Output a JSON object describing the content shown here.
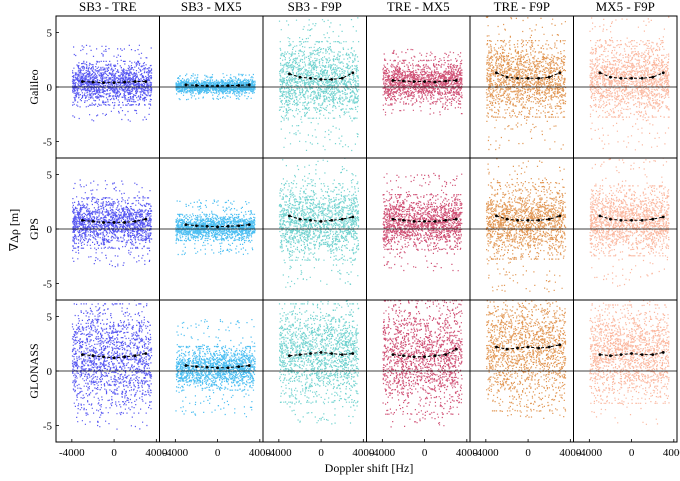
{
  "chart_data": {
    "type": "scatter",
    "xlabel": "Doppler shift [Hz]",
    "ylabel": "∇Δρ [m]",
    "columns": [
      "SB3 - TRE",
      "SB3 - MX5",
      "SB3 - F9P",
      "TRE - MX5",
      "TRE - F9P",
      "MX5 - F9P"
    ],
    "rows": [
      "Galileo",
      "GPS",
      "GLONASS"
    ],
    "column_colors": [
      "#2222ee",
      "#11aaee",
      "#44c4c0",
      "#c01848",
      "#d8751e",
      "#f9a080"
    ],
    "xlim": [
      -5500,
      4300
    ],
    "ylim": [
      -6.5,
      6.5
    ],
    "yticks": [
      5,
      0,
      -5
    ],
    "xticks": [
      -4000,
      0,
      4000
    ],
    "median_x": [
      -3000,
      -2000,
      -1000,
      0,
      1000,
      2000,
      3000
    ],
    "panels": [
      {
        "row": 0,
        "col": 0,
        "xrange": [
          -4000,
          3500
        ],
        "spread": 2.0,
        "outlier": 3.5,
        "median": [
          0.5,
          0.45,
          0.4,
          0.4,
          0.45,
          0.5,
          0.5
        ]
      },
      {
        "row": 0,
        "col": 1,
        "xrange": [
          -4000,
          3500
        ],
        "spread": 0.6,
        "outlier": 1.2,
        "median": [
          0.2,
          0.15,
          0.1,
          0.1,
          0.12,
          0.15,
          0.2
        ]
      },
      {
        "row": 0,
        "col": 2,
        "xrange": [
          -4000,
          3500
        ],
        "spread": 3.5,
        "outlier": 6.5,
        "median": [
          1.2,
          0.9,
          0.8,
          0.7,
          0.7,
          0.8,
          1.3
        ]
      },
      {
        "row": 0,
        "col": 3,
        "xrange": [
          -4000,
          3500
        ],
        "spread": 2.0,
        "outlier": 3.0,
        "median": [
          0.6,
          0.55,
          0.5,
          0.5,
          0.45,
          0.55,
          0.6
        ]
      },
      {
        "row": 0,
        "col": 4,
        "xrange": [
          -4000,
          3500
        ],
        "spread": 3.5,
        "outlier": 6.5,
        "median": [
          1.3,
          0.9,
          0.8,
          0.8,
          0.8,
          0.9,
          1.3
        ]
      },
      {
        "row": 0,
        "col": 5,
        "xrange": [
          -4000,
          3500
        ],
        "spread": 3.5,
        "outlier": 6.5,
        "median": [
          1.3,
          0.9,
          0.8,
          0.8,
          0.8,
          0.9,
          1.3
        ]
      },
      {
        "row": 1,
        "col": 0,
        "xrange": [
          -4000,
          3500
        ],
        "spread": 2.3,
        "outlier": 4.0,
        "median": [
          0.8,
          0.7,
          0.6,
          0.6,
          0.6,
          0.7,
          0.9
        ]
      },
      {
        "row": 1,
        "col": 1,
        "xrange": [
          -4000,
          3500
        ],
        "spread": 1.2,
        "outlier": 2.5,
        "median": [
          0.4,
          0.3,
          0.25,
          0.2,
          0.25,
          0.3,
          0.4
        ]
      },
      {
        "row": 1,
        "col": 2,
        "xrange": [
          -4000,
          3500
        ],
        "spread": 3.5,
        "outlier": 6.0,
        "median": [
          1.2,
          0.9,
          0.8,
          0.7,
          0.8,
          0.9,
          1.1
        ]
      },
      {
        "row": 1,
        "col": 3,
        "xrange": [
          -4000,
          3500
        ],
        "spread": 2.5,
        "outlier": 4.5,
        "median": [
          0.9,
          0.8,
          0.7,
          0.7,
          0.7,
          0.8,
          0.9
        ]
      },
      {
        "row": 1,
        "col": 4,
        "xrange": [
          -4000,
          3500
        ],
        "spread": 3.5,
        "outlier": 6.5,
        "median": [
          1.2,
          0.9,
          0.8,
          0.8,
          0.8,
          0.9,
          1.2
        ]
      },
      {
        "row": 1,
        "col": 5,
        "xrange": [
          -4000,
          3500
        ],
        "spread": 3.2,
        "outlier": 6.0,
        "median": [
          1.2,
          0.9,
          0.8,
          0.8,
          0.8,
          0.9,
          1.1
        ]
      },
      {
        "row": 2,
        "col": 0,
        "xrange": [
          -4000,
          3500
        ],
        "spread": 5.0,
        "outlier": 6.5,
        "median": [
          1.5,
          1.4,
          1.3,
          1.2,
          1.3,
          1.4,
          1.6
        ]
      },
      {
        "row": 2,
        "col": 1,
        "xrange": [
          -4000,
          3500
        ],
        "spread": 2.0,
        "outlier": 4.5,
        "median": [
          0.5,
          0.4,
          0.35,
          0.3,
          0.3,
          0.4,
          0.5
        ]
      },
      {
        "row": 2,
        "col": 2,
        "xrange": [
          -4000,
          3500
        ],
        "spread": 4.5,
        "outlier": 6.5,
        "median": [
          1.4,
          1.5,
          1.6,
          1.7,
          1.6,
          1.5,
          1.6
        ]
      },
      {
        "row": 2,
        "col": 3,
        "xrange": [
          -4000,
          3500
        ],
        "spread": 5.2,
        "outlier": 6.5,
        "median": [
          1.5,
          1.4,
          1.3,
          1.3,
          1.4,
          1.5,
          2.0
        ]
      },
      {
        "row": 2,
        "col": 4,
        "xrange": [
          -4000,
          3500
        ],
        "spread": 5.8,
        "outlier": 6.5,
        "median": [
          2.2,
          2.0,
          2.1,
          2.2,
          2.1,
          2.2,
          2.4
        ]
      },
      {
        "row": 2,
        "col": 5,
        "xrange": [
          -4000,
          3500
        ],
        "spread": 4.5,
        "outlier": 6.5,
        "median": [
          1.5,
          1.4,
          1.5,
          1.6,
          1.5,
          1.5,
          1.7
        ]
      }
    ]
  }
}
